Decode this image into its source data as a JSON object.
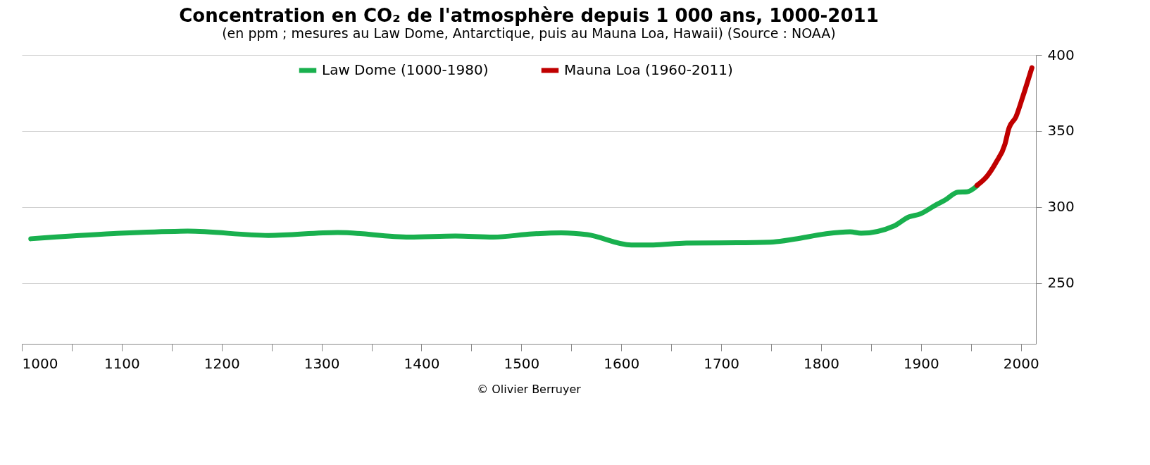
{
  "chart_data": {
    "type": "line",
    "title": "Concentration en CO₂ de l'atmosphère depuis 1 000 ans, 1000-2011",
    "subtitle": "(en ppm ; mesures au Law Dome, Antarctique, puis au Mauna Loa, Hawaii) (Source : NOAA)",
    "annotations": [
      "© Olivier Berruyer"
    ],
    "xlim": [
      1000,
      2015
    ],
    "xticks": [
      1000,
      {
        "value": 1050,
        "label": null
      },
      1100,
      {
        "value": 1150,
        "label": null
      },
      1200,
      {
        "value": 1250,
        "label": null
      },
      1300,
      {
        "value": 1350,
        "label": null
      },
      1400,
      {
        "value": 1450,
        "label": null
      },
      1500,
      {
        "value": 1550,
        "label": null
      },
      1600,
      {
        "value": 1650,
        "label": null
      },
      1700,
      {
        "value": 1750,
        "label": null
      },
      1800,
      {
        "value": 1850,
        "label": null
      },
      1900,
      {
        "value": 1950,
        "label": null
      },
      2000
    ],
    "ylim": [
      210,
      400
    ],
    "yticks": [
      250,
      300,
      350,
      400
    ],
    "grid": "y",
    "legend": "top",
    "line_style": "solid",
    "marker": "none",
    "series": [
      {
        "name": "Law Dome (1000-1980)",
        "color": "#19b04e",
        "x": [
          1009,
          1092,
          1166,
          1247,
          1316,
          1388,
          1434,
          1472,
          1511,
          1540,
          1566,
          1610,
          1632,
          1665,
          1716,
          1752,
          1774,
          1804,
          1829,
          1840,
          1873,
          1888,
          1899,
          1914,
          1924,
          1937,
          1946,
          1956
        ],
        "values": [
          279.1,
          282.5,
          284.1,
          281.3,
          283.2,
          280.2,
          280.9,
          280.2,
          282.3,
          283.0,
          281.8,
          275.0,
          275.0,
          276.3,
          276.5,
          277.0,
          278.9,
          282.3,
          283.7,
          282.7,
          287.5,
          293.5,
          295.4,
          301.0,
          304.5,
          309.8,
          310.0,
          313.9
        ]
      },
      {
        "name": "Mauna Loa (1960-2011)",
        "color": "#c00000",
        "x": [
          1956,
          1966,
          1975,
          1984,
          1988,
          1995,
          2002,
          2011
        ],
        "values": [
          314.2,
          320.2,
          329.2,
          341.3,
          351.8,
          359.3,
          372.8,
          391.6
        ]
      }
    ]
  }
}
